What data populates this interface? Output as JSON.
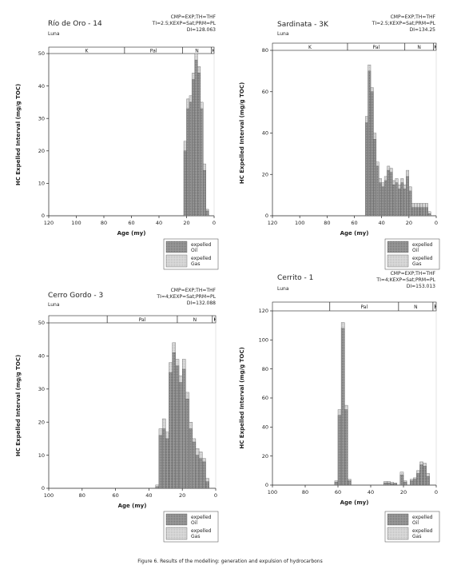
{
  "legend_defaults": {
    "oil_label_1": "expelled",
    "oil_label_2": "Oil",
    "gas_label_1": "expelled",
    "gas_label_2": "Gas"
  },
  "colors": {
    "oil_fill": "#9b9b9b",
    "gas_fill": "#d6d6d6",
    "axis": "#222222"
  },
  "caption": "Figure 6. Results of the modelling: generation and expulsion of hydrocarbons",
  "chart_data": [
    {
      "type": "bar",
      "title": "Río de Oro - 14",
      "subtitle": "Luna",
      "params": [
        "CMP=EXP;TH=THF",
        "TI=2.5;KEXP=Sat;PRM=PL",
        "DI=128.063"
      ],
      "xlabel": "Age (my)",
      "ylabel": "HC Expelled Interval (mg/g TOC)",
      "xlim": [
        120,
        0
      ],
      "ylim": [
        0,
        50
      ],
      "xticks": [
        120,
        100,
        80,
        60,
        40,
        20,
        0
      ],
      "yticks": [
        0,
        10,
        20,
        30,
        40,
        50
      ],
      "periods": [
        {
          "label": "K",
          "from": 120,
          "to": 65
        },
        {
          "label": "Pal",
          "from": 65,
          "to": 23
        },
        {
          "label": "N",
          "from": 23,
          "to": 2
        },
        {
          "label": "",
          "from": 2,
          "to": 0
        }
      ],
      "bins": [
        {
          "x": 20,
          "oil": 20,
          "gas": 23
        },
        {
          "x": 18,
          "oil": 33,
          "gas": 36
        },
        {
          "x": 16,
          "oil": 35,
          "gas": 37
        },
        {
          "x": 14,
          "oil": 42,
          "gas": 44
        },
        {
          "x": 12,
          "oil": 48,
          "gas": 50
        },
        {
          "x": 10,
          "oil": 44,
          "gas": 46
        },
        {
          "x": 8,
          "oil": 33,
          "gas": 35
        },
        {
          "x": 6,
          "oil": 14,
          "gas": 16
        },
        {
          "x": 4,
          "oil": 1.5,
          "gas": 2
        }
      ]
    },
    {
      "type": "bar",
      "title": "Sardinata - 3K",
      "subtitle": "Luna",
      "params": [
        "CMP=EXP;TH=THF",
        "TI=2.5;KEXP=Sat;PRM=PL",
        "DI=134.25"
      ],
      "xlabel": "Age (my)",
      "ylabel": "HC Expelled Interval (mg/g TOC)",
      "xlim": [
        120,
        0
      ],
      "ylim": [
        0,
        80
      ],
      "xticks": [
        120,
        100,
        80,
        60,
        40,
        20,
        0
      ],
      "yticks": [
        0,
        20,
        40,
        60,
        80
      ],
      "periods": [
        {
          "label": "K",
          "from": 120,
          "to": 65
        },
        {
          "label": "Pal",
          "from": 65,
          "to": 23
        },
        {
          "label": "N",
          "from": 23,
          "to": 2
        },
        {
          "label": "",
          "from": 2,
          "to": 0
        }
      ],
      "bins": [
        {
          "x": 50,
          "oil": 45,
          "gas": 48
        },
        {
          "x": 48,
          "oil": 70,
          "gas": 73
        },
        {
          "x": 46,
          "oil": 60,
          "gas": 62
        },
        {
          "x": 44,
          "oil": 37,
          "gas": 40
        },
        {
          "x": 42,
          "oil": 24,
          "gas": 26
        },
        {
          "x": 40,
          "oil": 16,
          "gas": 18
        },
        {
          "x": 38,
          "oil": 14,
          "gas": 16
        },
        {
          "x": 36,
          "oil": 17,
          "gas": 19
        },
        {
          "x": 34,
          "oil": 22,
          "gas": 24
        },
        {
          "x": 32,
          "oil": 21,
          "gas": 23
        },
        {
          "x": 30,
          "oil": 15,
          "gas": 17
        },
        {
          "x": 28,
          "oil": 16,
          "gas": 18
        },
        {
          "x": 26,
          "oil": 13,
          "gas": 15
        },
        {
          "x": 24,
          "oil": 16,
          "gas": 18
        },
        {
          "x": 22,
          "oil": 13,
          "gas": 15
        },
        {
          "x": 20,
          "oil": 19,
          "gas": 22
        },
        {
          "x": 18,
          "oil": 12,
          "gas": 14
        },
        {
          "x": 16,
          "oil": 4,
          "gas": 6
        },
        {
          "x": 14,
          "oil": 4,
          "gas": 6
        },
        {
          "x": 12,
          "oil": 4,
          "gas": 6
        },
        {
          "x": 10,
          "oil": 4,
          "gas": 6
        },
        {
          "x": 8,
          "oil": 4,
          "gas": 6
        },
        {
          "x": 6,
          "oil": 4,
          "gas": 6
        },
        {
          "x": 4,
          "oil": 1,
          "gas": 2
        }
      ]
    },
    {
      "type": "bar",
      "title": "Cerro Gordo - 3",
      "subtitle": "Luna",
      "params": [
        "CMP=EXP;TH=THF",
        "TI=4;KEXP=Sat;PRM=PL",
        "DI=132.088"
      ],
      "xlabel": "Age (my)",
      "ylabel": "HC Expelled Interval (mg/g TOC)",
      "xlim": [
        100,
        0
      ],
      "ylim": [
        0,
        50
      ],
      "xticks": [
        100,
        80,
        60,
        40,
        20,
        0
      ],
      "yticks": [
        0,
        10,
        20,
        30,
        40,
        50
      ],
      "periods": [
        {
          "label": "",
          "from": 100,
          "to": 65
        },
        {
          "label": "Pal",
          "from": 65,
          "to": 23
        },
        {
          "label": "N",
          "from": 23,
          "to": 2
        },
        {
          "label": "",
          "from": 2,
          "to": 0
        }
      ],
      "bins": [
        {
          "x": 34,
          "oil": 0.5,
          "gas": 1
        },
        {
          "x": 32,
          "oil": 16,
          "gas": 18
        },
        {
          "x": 30,
          "oil": 18,
          "gas": 21
        },
        {
          "x": 28,
          "oil": 15,
          "gas": 17
        },
        {
          "x": 26,
          "oil": 35,
          "gas": 38
        },
        {
          "x": 24,
          "oil": 41,
          "gas": 44
        },
        {
          "x": 22,
          "oil": 37,
          "gas": 39
        },
        {
          "x": 20,
          "oil": 32,
          "gas": 34
        },
        {
          "x": 18,
          "oil": 36,
          "gas": 39
        },
        {
          "x": 16,
          "oil": 27,
          "gas": 29
        },
        {
          "x": 14,
          "oil": 18,
          "gas": 20
        },
        {
          "x": 12,
          "oil": 14,
          "gas": 15
        },
        {
          "x": 10,
          "oil": 10,
          "gas": 12
        },
        {
          "x": 8,
          "oil": 9,
          "gas": 11
        },
        {
          "x": 6,
          "oil": 8,
          "gas": 9
        },
        {
          "x": 4,
          "oil": 2,
          "gas": 3
        }
      ]
    },
    {
      "type": "bar",
      "title": "Cerrito - 1",
      "subtitle": "Luna",
      "params": [
        "CMP=EXP;TH=THF",
        "TI=4;KEXP=Sat;PRM=PL",
        "DI=153.013"
      ],
      "xlabel": "Age (my)",
      "ylabel": "HC Expelled Interval (mg/g TOC)",
      "xlim": [
        100,
        0
      ],
      "ylim": [
        0,
        120
      ],
      "xticks": [
        100,
        80,
        60,
        40,
        20,
        0
      ],
      "yticks": [
        0,
        20,
        40,
        60,
        80,
        100,
        120
      ],
      "periods": [
        {
          "label": "",
          "from": 100,
          "to": 65
        },
        {
          "label": "Pal",
          "from": 65,
          "to": 23
        },
        {
          "label": "N",
          "from": 23,
          "to": 2
        },
        {
          "label": "",
          "from": 2,
          "to": 0
        }
      ],
      "bins": [
        {
          "x": 60,
          "oil": 2,
          "gas": 3
        },
        {
          "x": 58,
          "oil": 48,
          "gas": 52
        },
        {
          "x": 56,
          "oil": 108,
          "gas": 112
        },
        {
          "x": 54,
          "oil": 52,
          "gas": 55
        },
        {
          "x": 52,
          "oil": 3,
          "gas": 4
        },
        {
          "x": 30,
          "oil": 1.5,
          "gas": 2.5
        },
        {
          "x": 28,
          "oil": 1.5,
          "gas": 2.5
        },
        {
          "x": 26,
          "oil": 1,
          "gas": 2
        },
        {
          "x": 24,
          "oil": 1,
          "gas": 1.5
        },
        {
          "x": 20,
          "oil": 7,
          "gas": 9
        },
        {
          "x": 18,
          "oil": 2,
          "gas": 3
        },
        {
          "x": 14,
          "oil": 3,
          "gas": 4
        },
        {
          "x": 12,
          "oil": 4,
          "gas": 5
        },
        {
          "x": 10,
          "oil": 8,
          "gas": 10
        },
        {
          "x": 8,
          "oil": 14,
          "gas": 16
        },
        {
          "x": 6,
          "oil": 13,
          "gas": 15
        },
        {
          "x": 4,
          "oil": 6,
          "gas": 8
        }
      ]
    }
  ]
}
